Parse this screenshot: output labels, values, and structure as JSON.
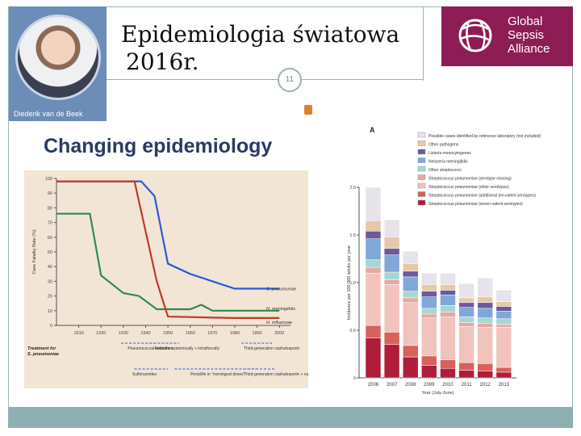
{
  "header": {
    "presenter_name": "Diederik van de Beek",
    "title_line1": "Epidemiologia światowa",
    "title_line2": "2016r.",
    "page_number": "11",
    "logo_lines": [
      "Global",
      "Sepsis",
      "Alliance"
    ]
  },
  "slide_heading": "Changing epidemiology",
  "colors": {
    "pneumoniae": "#2a5bd1",
    "meningitidis": "#2f8c4a",
    "influenzae": "#c0392b",
    "accent": "#9ab4b6",
    "logo_bg": "#8e1c55",
    "chart_bg": "#f2e5d6"
  },
  "chart_data": [
    {
      "type": "line",
      "title": "",
      "ylabel": "Case Fatality Rate (%)",
      "xlabel": "",
      "x": [
        1900,
        1910,
        1920,
        1930,
        1935,
        1940,
        1945,
        1950,
        1960,
        1965,
        1970,
        1980,
        1990,
        2000
      ],
      "xticks": [
        "1910",
        "1920",
        "1930",
        "1940",
        "1950",
        "1960",
        "1970",
        "1980",
        "1990",
        "2000"
      ],
      "xtick_values": [
        1910,
        1920,
        1930,
        1940,
        1950,
        1960,
        1970,
        1980,
        1990,
        2000
      ],
      "yticks": [
        "0",
        "10",
        "20",
        "30",
        "40",
        "50",
        "60",
        "70",
        "80",
        "90",
        "100"
      ],
      "ylim": [
        0,
        100
      ],
      "xlim": [
        1900,
        2005
      ],
      "series": [
        {
          "name": "S. pneumoniae",
          "color": "#2a5bd1",
          "x": [
            1900,
            1938,
            1944,
            1950,
            1960,
            1970,
            1980,
            2000
          ],
          "y": [
            98,
            98,
            88,
            42,
            35,
            30,
            25,
            25
          ]
        },
        {
          "name": "N. meningitidis",
          "color": "#2f8c4a",
          "x": [
            1900,
            1915,
            1920,
            1930,
            1937,
            1945,
            1960,
            1965,
            1970,
            2000
          ],
          "y": [
            76,
            76,
            34,
            22,
            20,
            11,
            11,
            14,
            10,
            10
          ]
        },
        {
          "name": "H. influenzae",
          "color": "#c0392b",
          "x": [
            1900,
            1935,
            1945,
            1950,
            1980,
            2000
          ],
          "y": [
            98,
            98,
            30,
            6,
            5,
            5
          ]
        }
      ],
      "series_labels": [
        "S. pneumoniae",
        "N. meningitidis",
        "H. influenzae"
      ],
      "treatment_title": [
        "Treatment for",
        "S. pneumoniae"
      ],
      "treatment_labels": [
        "Pneumococcal antiserum",
        "Penicillin systemically + intrathecally",
        "Third-generation cephalosporin",
        "Sulfonamides",
        "Penicillin in \"meningeal doses\"",
        "Third-generation cephalosporin + vancomycin"
      ]
    },
    {
      "type": "bar",
      "stacked": true,
      "panel_label": "A",
      "ylabel": "Incidence per 100 000 adults per year",
      "xlabel": "Year (July-June)",
      "ylim": [
        0,
        2.0
      ],
      "yticks": [
        "0",
        "0.5",
        "1.0",
        "1.5",
        "2.0"
      ],
      "categories": [
        "2006",
        "2007",
        "2008",
        "2009",
        "2010",
        "2011",
        "2012",
        "2013"
      ],
      "series": [
        {
          "name": "Streptococcus pneumoniae (seven-valent serotypes)",
          "color": "#b01d3b",
          "values": [
            0.42,
            0.35,
            0.22,
            0.13,
            0.1,
            0.08,
            0.07,
            0.06
          ]
        },
        {
          "name": "Streptococcus pneumoniae (additional ten-valent serotypes)",
          "color": "#d9605b",
          "values": [
            0.13,
            0.13,
            0.12,
            0.1,
            0.09,
            0.08,
            0.08,
            0.05
          ]
        },
        {
          "name": "Streptococcus pneumoniae (other serotypes)",
          "color": "#f0c4bd",
          "values": [
            0.55,
            0.5,
            0.45,
            0.4,
            0.45,
            0.38,
            0.38,
            0.42
          ]
        },
        {
          "name": "Streptococcus pneumoniae (serotype missing)",
          "color": "#e8a7a2",
          "values": [
            0.06,
            0.05,
            0.05,
            0.04,
            0.05,
            0.04,
            0.04,
            0.03
          ]
        },
        {
          "name": "Other streptococci",
          "color": "#a8d7d2",
          "values": [
            0.08,
            0.08,
            0.07,
            0.06,
            0.07,
            0.06,
            0.06,
            0.06
          ]
        },
        {
          "name": "Neisseria meningitidis",
          "color": "#7fa8d8",
          "values": [
            0.22,
            0.18,
            0.15,
            0.12,
            0.11,
            0.1,
            0.1,
            0.08
          ]
        },
        {
          "name": "Listeria monocytogenes",
          "color": "#6a5a9e",
          "values": [
            0.08,
            0.07,
            0.06,
            0.06,
            0.05,
            0.05,
            0.06,
            0.05
          ]
        },
        {
          "name": "Other pathogens",
          "color": "#e7c8a8",
          "values": [
            0.11,
            0.12,
            0.08,
            0.07,
            0.06,
            0.05,
            0.06,
            0.05
          ]
        },
        {
          "name": "Possible cases identified by reference laboratory (not included)",
          "color": "#e6e3ea",
          "values": [
            0.35,
            0.18,
            0.13,
            0.12,
            0.12,
            0.15,
            0.2,
            0.12
          ]
        }
      ]
    }
  ]
}
